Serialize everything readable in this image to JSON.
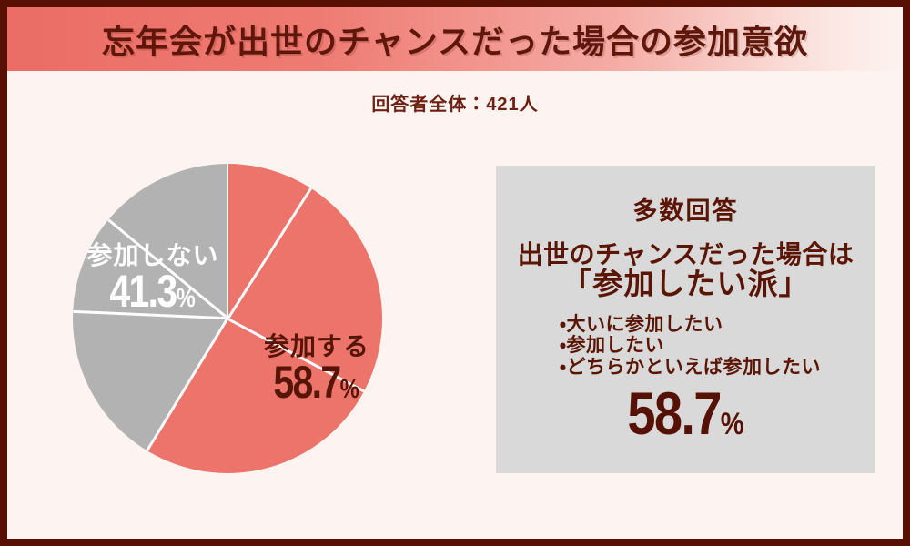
{
  "page": {
    "background_color": "#FDF4F1",
    "frame_border_color": "#571003"
  },
  "header": {
    "title": "忘年会が出世のチャンスだった場合の参加意欲",
    "text_color": "#5E170A",
    "gradient_left": "#EB6D65",
    "gradient_right": "#FDF2EF"
  },
  "respondents": {
    "label": "回答者全体：421人",
    "count": 421
  },
  "chart_data": {
    "type": "pie",
    "title": "忘年会が出世のチャンスだった場合の参加意欲",
    "total_respondents": 421,
    "start": "12 o'clock, clockwise",
    "slices": [
      {
        "label": "参加する",
        "value": 58.7,
        "value_str": "58.7",
        "pct_suffix": "%",
        "color": "#ED746B",
        "label_color": "#571507"
      },
      {
        "label": "参加しない",
        "value": 41.3,
        "value_str": "41.3",
        "pct_suffix": "%",
        "color": "#B2B2B2",
        "label_color": "#FFFFFF"
      }
    ],
    "sub_divider_angles_deg": [
      0,
      32.5,
      118,
      211.3,
      272.5,
      309.5
    ],
    "divider_color": "#FFFFFF",
    "legend": "none",
    "labels_inside_slices": true
  },
  "panel": {
    "background_color": "#D9D9D9",
    "heading": "多数回答",
    "line1": "出世のチャンスだった場合は",
    "line2": "「参加したい派」",
    "bullets": [
      "・大いに参加したい",
      "・参加したい",
      "・どちらかといえば参加したい"
    ],
    "value_str": "58.7",
    "pct_suffix": "%"
  }
}
